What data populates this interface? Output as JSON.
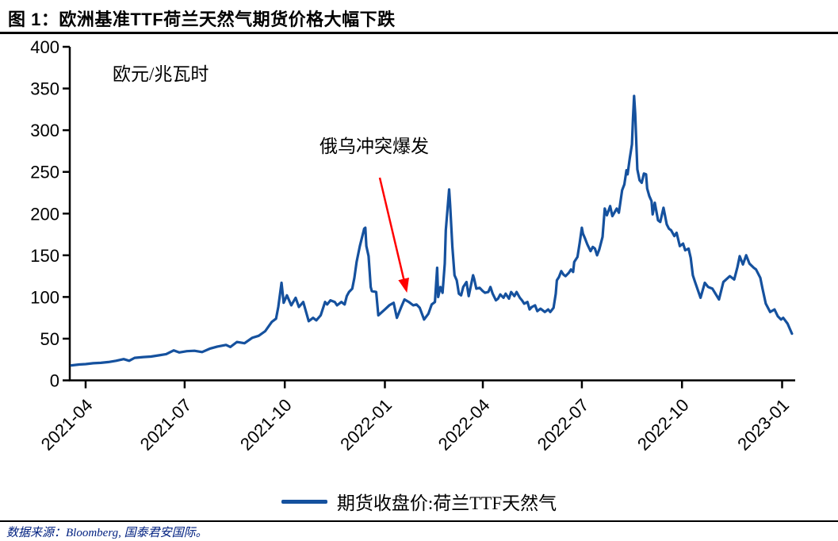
{
  "title": "图 1：欧洲基准TTF荷兰天然气期货价格大幅下跌",
  "source_note": "数据来源：Bloomberg, 国泰君安国际。",
  "chart_data": {
    "type": "line",
    "title": "欧洲基准TTF荷兰天然气期货价格大幅下跌",
    "unit_label": "欧元/兆瓦时",
    "xlabel": "",
    "ylabel": "欧元/兆瓦时",
    "grid": false,
    "ylim": [
      0,
      400
    ],
    "y_ticks": [
      0,
      50,
      100,
      150,
      200,
      250,
      300,
      350,
      400
    ],
    "x_tick_labels": [
      "2021-04",
      "2021-07",
      "2021-10",
      "2022-01",
      "2022-04",
      "2022-07",
      "2022-10",
      "2023-01"
    ],
    "x_tick_dates": [
      "2021-04-01",
      "2021-07-01",
      "2021-10-01",
      "2022-01-01",
      "2022-04-01",
      "2022-07-01",
      "2022-10-01",
      "2023-01-01"
    ],
    "legend": {
      "position": "bottom",
      "label": "期货收盘价:荷兰TTF天然气"
    },
    "line_color": "#15519E",
    "axis_color": "#000000",
    "annotation": {
      "text": "俄乌冲突爆发",
      "arrow_color": "#FF0000",
      "points_at": {
        "date": "2022-01-22",
        "value": 100
      }
    },
    "series": [
      {
        "name": "期货收盘价:荷兰TTF天然气",
        "points": [
          [
            "2021-03-19",
            18
          ],
          [
            "2021-03-26",
            19
          ],
          [
            "2021-04-01",
            19.5
          ],
          [
            "2021-04-08",
            20.5
          ],
          [
            "2021-04-15",
            21
          ],
          [
            "2021-04-22",
            22
          ],
          [
            "2021-04-29",
            23.5
          ],
          [
            "2021-05-06",
            25.5
          ],
          [
            "2021-05-11",
            23.5
          ],
          [
            "2021-05-16",
            27
          ],
          [
            "2021-05-24",
            28
          ],
          [
            "2021-05-31",
            28.5
          ],
          [
            "2021-06-07",
            30
          ],
          [
            "2021-06-14",
            31.5
          ],
          [
            "2021-06-21",
            36
          ],
          [
            "2021-06-26",
            33.5
          ],
          [
            "2021-07-03",
            35
          ],
          [
            "2021-07-10",
            35.5
          ],
          [
            "2021-07-17",
            34
          ],
          [
            "2021-07-24",
            38
          ],
          [
            "2021-07-31",
            40.5
          ],
          [
            "2021-08-08",
            42.5
          ],
          [
            "2021-08-12",
            40
          ],
          [
            "2021-08-18",
            46
          ],
          [
            "2021-08-25",
            44.5
          ],
          [
            "2021-09-01",
            51
          ],
          [
            "2021-09-07",
            53.5
          ],
          [
            "2021-09-13",
            59
          ],
          [
            "2021-09-19",
            70
          ],
          [
            "2021-09-23",
            74
          ],
          [
            "2021-09-25",
            88
          ],
          [
            "2021-09-28",
            117
          ],
          [
            "2021-09-30",
            93
          ],
          [
            "2021-10-03",
            102
          ],
          [
            "2021-10-07",
            90
          ],
          [
            "2021-10-11",
            99
          ],
          [
            "2021-10-14",
            88
          ],
          [
            "2021-10-18",
            94
          ],
          [
            "2021-10-23",
            71
          ],
          [
            "2021-10-27",
            75
          ],
          [
            "2021-10-30",
            72
          ],
          [
            "2021-11-03",
            78
          ],
          [
            "2021-11-07",
            94
          ],
          [
            "2021-11-09",
            91
          ],
          [
            "2021-11-12",
            96
          ],
          [
            "2021-11-16",
            94
          ],
          [
            "2021-11-18",
            90
          ],
          [
            "2021-11-22",
            94
          ],
          [
            "2021-11-25",
            91
          ],
          [
            "2021-11-27",
            101
          ],
          [
            "2021-11-29",
            106
          ],
          [
            "2021-12-02",
            110
          ],
          [
            "2021-12-04",
            123
          ],
          [
            "2021-12-06",
            142
          ],
          [
            "2021-12-09",
            161
          ],
          [
            "2021-12-13",
            182
          ],
          [
            "2021-12-14",
            183
          ],
          [
            "2021-12-15",
            161
          ],
          [
            "2021-12-17",
            149
          ],
          [
            "2021-12-18",
            130
          ],
          [
            "2021-12-19",
            112
          ],
          [
            "2021-12-20",
            107
          ],
          [
            "2021-12-24",
            106
          ],
          [
            "2021-12-26",
            78
          ],
          [
            "2022-01-01",
            85
          ],
          [
            "2022-01-05",
            90
          ],
          [
            "2022-01-09",
            93
          ],
          [
            "2022-01-12",
            75
          ],
          [
            "2022-01-16",
            88
          ],
          [
            "2022-01-19",
            97
          ],
          [
            "2022-01-23",
            94
          ],
          [
            "2022-01-27",
            90
          ],
          [
            "2022-01-30",
            91
          ],
          [
            "2022-02-02",
            87
          ],
          [
            "2022-02-06",
            73
          ],
          [
            "2022-02-10",
            80
          ],
          [
            "2022-02-13",
            91
          ],
          [
            "2022-02-16",
            94
          ],
          [
            "2022-02-18",
            135
          ],
          [
            "2022-02-19",
            100
          ],
          [
            "2022-02-21",
            112
          ],
          [
            "2022-02-23",
            105
          ],
          [
            "2022-02-25",
            140
          ],
          [
            "2022-02-26",
            180
          ],
          [
            "2022-03-01",
            229
          ],
          [
            "2022-03-02",
            210
          ],
          [
            "2022-03-04",
            160
          ],
          [
            "2022-03-06",
            126
          ],
          [
            "2022-03-08",
            120
          ],
          [
            "2022-03-10",
            104
          ],
          [
            "2022-03-12",
            102
          ],
          [
            "2022-03-14",
            112
          ],
          [
            "2022-03-17",
            118
          ],
          [
            "2022-03-19",
            101
          ],
          [
            "2022-03-23",
            126
          ],
          [
            "2022-03-24",
            122
          ],
          [
            "2022-03-26",
            110
          ],
          [
            "2022-03-29",
            111
          ],
          [
            "2022-04-01",
            107
          ],
          [
            "2022-04-03",
            105
          ],
          [
            "2022-04-06",
            106
          ],
          [
            "2022-04-08",
            112
          ],
          [
            "2022-04-10",
            104
          ],
          [
            "2022-04-13",
            96
          ],
          [
            "2022-04-15",
            98
          ],
          [
            "2022-04-17",
            103
          ],
          [
            "2022-04-20",
            99
          ],
          [
            "2022-04-22",
            104
          ],
          [
            "2022-04-25",
            98
          ],
          [
            "2022-04-27",
            106
          ],
          [
            "2022-04-30",
            101
          ],
          [
            "2022-05-02",
            106
          ],
          [
            "2022-05-05",
            99
          ],
          [
            "2022-05-07",
            96
          ],
          [
            "2022-05-09",
            92
          ],
          [
            "2022-05-12",
            94
          ],
          [
            "2022-05-14",
            85
          ],
          [
            "2022-05-16",
            88
          ],
          [
            "2022-05-19",
            90
          ],
          [
            "2022-05-21",
            83
          ],
          [
            "2022-05-24",
            86
          ],
          [
            "2022-05-26",
            84
          ],
          [
            "2022-05-28",
            82
          ],
          [
            "2022-05-31",
            85
          ],
          [
            "2022-06-02",
            82
          ],
          [
            "2022-06-05",
            87
          ],
          [
            "2022-06-07",
            104
          ],
          [
            "2022-06-08",
            120
          ],
          [
            "2022-06-10",
            124
          ],
          [
            "2022-06-12",
            131
          ],
          [
            "2022-06-14",
            127
          ],
          [
            "2022-06-16",
            125
          ],
          [
            "2022-06-19",
            129
          ],
          [
            "2022-06-21",
            133
          ],
          [
            "2022-06-23",
            130
          ],
          [
            "2022-06-24",
            142
          ],
          [
            "2022-06-27",
            148
          ],
          [
            "2022-06-29",
            165
          ],
          [
            "2022-07-01",
            183
          ],
          [
            "2022-07-02",
            176
          ],
          [
            "2022-07-04",
            170
          ],
          [
            "2022-07-06",
            163
          ],
          [
            "2022-07-09",
            155
          ],
          [
            "2022-07-11",
            160
          ],
          [
            "2022-07-13",
            158
          ],
          [
            "2022-07-15",
            150
          ],
          [
            "2022-07-17",
            157
          ],
          [
            "2022-07-20",
            172
          ],
          [
            "2022-07-22",
            206
          ],
          [
            "2022-07-24",
            198
          ],
          [
            "2022-07-27",
            209
          ],
          [
            "2022-07-29",
            197
          ],
          [
            "2022-08-02",
            206
          ],
          [
            "2022-08-04",
            201
          ],
          [
            "2022-08-07",
            228
          ],
          [
            "2022-08-09",
            235
          ],
          [
            "2022-08-11",
            252
          ],
          [
            "2022-08-12",
            247
          ],
          [
            "2022-08-14",
            266
          ],
          [
            "2022-08-16",
            283
          ],
          [
            "2022-08-17",
            314
          ],
          [
            "2022-08-18",
            341
          ],
          [
            "2022-08-19",
            320
          ],
          [
            "2022-08-21",
            253
          ],
          [
            "2022-08-23",
            240
          ],
          [
            "2022-08-25",
            237
          ],
          [
            "2022-08-27",
            248
          ],
          [
            "2022-08-29",
            247
          ],
          [
            "2022-08-30",
            230
          ],
          [
            "2022-09-01",
            221
          ],
          [
            "2022-09-03",
            215
          ],
          [
            "2022-09-04",
            199
          ],
          [
            "2022-09-06",
            213
          ],
          [
            "2022-09-09",
            192
          ],
          [
            "2022-09-11",
            190
          ],
          [
            "2022-09-14",
            207
          ],
          [
            "2022-09-17",
            187
          ],
          [
            "2022-09-19",
            182
          ],
          [
            "2022-09-21",
            180
          ],
          [
            "2022-09-24",
            173
          ],
          [
            "2022-09-26",
            177
          ],
          [
            "2022-09-29",
            161
          ],
          [
            "2022-10-02",
            164
          ],
          [
            "2022-10-04",
            156
          ],
          [
            "2022-10-07",
            158
          ],
          [
            "2022-10-09",
            147
          ],
          [
            "2022-10-11",
            126
          ],
          [
            "2022-10-13",
            118
          ],
          [
            "2022-10-18",
            99
          ],
          [
            "2022-10-22",
            117
          ],
          [
            "2022-10-25",
            112
          ],
          [
            "2022-10-29",
            110
          ],
          [
            "2022-11-04",
            97
          ],
          [
            "2022-11-08",
            118
          ],
          [
            "2022-11-14",
            125
          ],
          [
            "2022-11-18",
            121
          ],
          [
            "2022-11-21",
            136
          ],
          [
            "2022-11-23",
            149
          ],
          [
            "2022-11-26",
            139
          ],
          [
            "2022-11-29",
            150
          ],
          [
            "2022-12-02",
            140
          ],
          [
            "2022-12-06",
            135
          ],
          [
            "2022-12-08",
            133
          ],
          [
            "2022-12-12",
            123
          ],
          [
            "2022-12-14",
            110
          ],
          [
            "2022-12-17",
            92
          ],
          [
            "2022-12-21",
            82
          ],
          [
            "2022-12-25",
            85
          ],
          [
            "2022-12-28",
            77
          ],
          [
            "2022-12-31",
            73
          ],
          [
            "2023-01-02",
            75
          ],
          [
            "2023-01-06",
            68
          ],
          [
            "2023-01-10",
            56
          ]
        ]
      }
    ]
  }
}
